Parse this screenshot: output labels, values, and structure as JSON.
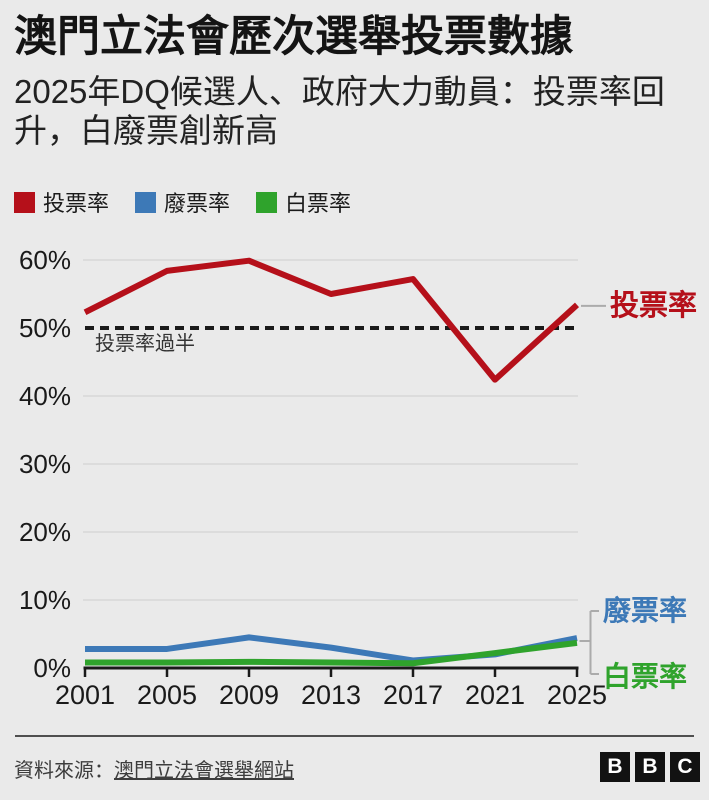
{
  "header": {
    "title": "澳門立法會歷次選舉投票數據",
    "subtitle": "2025年DQ候選人、政府大力動員：投票率回升，白廢票創新高"
  },
  "chart_data": {
    "type": "line",
    "categories": [
      "2001",
      "2005",
      "2009",
      "2013",
      "2017",
      "2021",
      "2025"
    ],
    "series": [
      {
        "name": "投票率",
        "color": "#b5101a",
        "values": [
          52.3,
          58.4,
          59.9,
          55.0,
          57.2,
          42.4,
          53.4
        ]
      },
      {
        "name": "廢票率",
        "color": "#3d79b7",
        "values": [
          2.8,
          2.8,
          4.5,
          3.0,
          1.1,
          2.0,
          4.4
        ]
      },
      {
        "name": "白票率",
        "color": "#2fa32c",
        "values": [
          0.8,
          0.8,
          0.9,
          0.8,
          0.7,
          2.2,
          3.7
        ]
      }
    ],
    "ylim": [
      0,
      60
    ],
    "ytick_step": 10,
    "ytick_suffix": "%",
    "grid": "horizontal",
    "legend_position": "top",
    "end_labels_position": "right",
    "reference_line": {
      "value": 50,
      "label": "投票率過半",
      "style": "dashed",
      "color": "#1a1a1a"
    }
  },
  "colors": {
    "background": "#eaeaea",
    "grid": "#d7d7d7",
    "axis": "#1a1a1a",
    "connector": "#ababab"
  },
  "footer": {
    "source_prefix": "資料來源：",
    "source_link": "澳門立法會選舉網站",
    "logo_letters": [
      "B",
      "B",
      "C"
    ]
  }
}
